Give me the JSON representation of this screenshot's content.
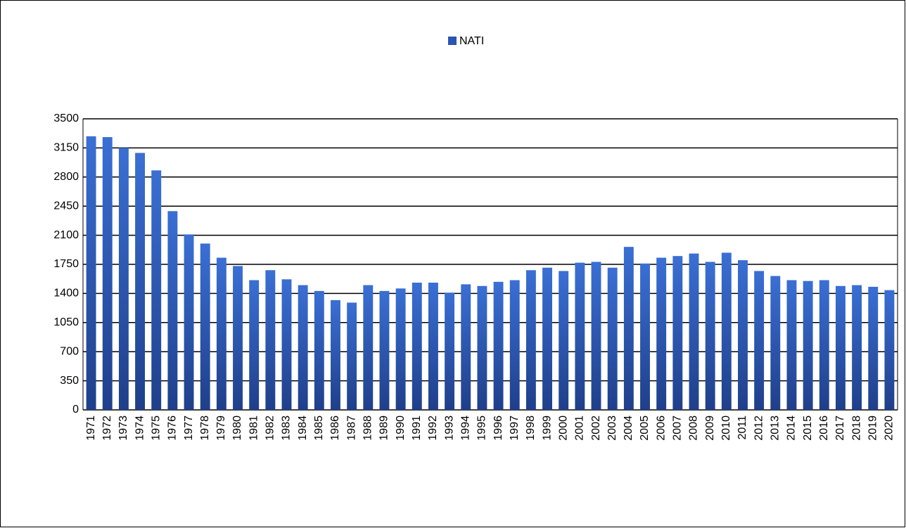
{
  "chart_data": {
    "type": "bar",
    "categories": [
      "1971",
      "1972",
      "1973",
      "1974",
      "1975",
      "1976",
      "1977",
      "1978",
      "1979",
      "1980",
      "1981",
      "1982",
      "1983",
      "1984",
      "1985",
      "1986",
      "1987",
      "1988",
      "1989",
      "1990",
      "1991",
      "1992",
      "1993",
      "1994",
      "1995",
      "1996",
      "1997",
      "1998",
      "1999",
      "2000",
      "2001",
      "2002",
      "2003",
      "2004",
      "2005",
      "2006",
      "2007",
      "2008",
      "2009",
      "2010",
      "2011",
      "2012",
      "2013",
      "2014",
      "2015",
      "2016",
      "2017",
      "2018",
      "2019",
      "2020"
    ],
    "series": [
      {
        "name": "NATI",
        "color": "#2a55b0",
        "values": [
          3290,
          3280,
          3150,
          3090,
          2880,
          2390,
          2110,
          2000,
          1830,
          1730,
          1560,
          1680,
          1570,
          1500,
          1430,
          1320,
          1290,
          1500,
          1430,
          1460,
          1530,
          1530,
          1410,
          1510,
          1490,
          1540,
          1560,
          1680,
          1710,
          1670,
          1770,
          1780,
          1710,
          1960,
          1760,
          1830,
          1850,
          1880,
          1780,
          1890,
          1800,
          1670,
          1610,
          1560,
          1550,
          1560,
          1490,
          1500,
          1480,
          1440
        ]
      }
    ],
    "ylim": [
      0,
      3500
    ],
    "yticks": [
      0,
      350,
      700,
      1050,
      1400,
      1750,
      2100,
      2450,
      2800,
      3150,
      3500
    ],
    "grid": true,
    "legend": "top"
  }
}
